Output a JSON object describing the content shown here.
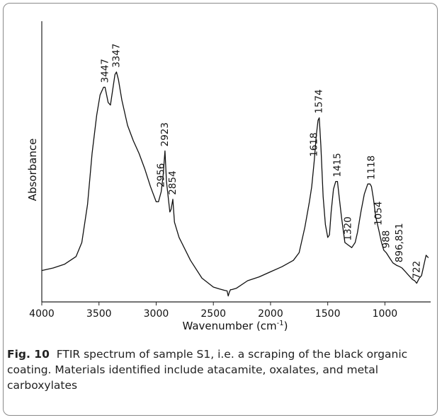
{
  "chart_data": {
    "type": "line",
    "xlabel": "Wavenumber (cm",
    "xlabel_sup": "-1",
    "xlabel_close": ")",
    "ylabel": "Absorbance",
    "xlim": [
      4000,
      600
    ],
    "ylim": [
      0,
      1
    ],
    "x_reversed": true,
    "xticks": [
      4000,
      3500,
      3000,
      2500,
      2000,
      1500,
      1000
    ],
    "xtick_labels": [
      "4000",
      "3500",
      "3000",
      "2500",
      "2000",
      "1500",
      "1000"
    ],
    "grid": false,
    "series": [
      {
        "x": [
          4000,
          3900,
          3800,
          3700,
          3650,
          3600,
          3560,
          3520,
          3490,
          3460,
          3447,
          3420,
          3400,
          3380,
          3360,
          3347,
          3330,
          3300,
          3250,
          3200,
          3150,
          3100,
          3050,
          3000,
          2980,
          2956,
          2940,
          2923,
          2910,
          2880,
          2870,
          2854,
          2840,
          2800,
          2700,
          2600,
          2500,
          2450,
          2400,
          2380,
          2370,
          2360,
          2350,
          2340,
          2300,
          2200,
          2100,
          2000,
          1900,
          1800,
          1750,
          1700,
          1660,
          1640,
          1618,
          1600,
          1585,
          1574,
          1560,
          1540,
          1520,
          1500,
          1485,
          1470,
          1450,
          1430,
          1415,
          1400,
          1380,
          1350,
          1320,
          1290,
          1260,
          1240,
          1210,
          1180,
          1150,
          1130,
          1118,
          1100,
          1080,
          1054,
          1030,
          1010,
          988,
          960,
          930,
          896,
          870,
          851,
          820,
          790,
          760,
          740,
          722,
          700,
          680,
          660,
          640,
          620
        ],
        "y": [
          0.09,
          0.1,
          0.115,
          0.145,
          0.2,
          0.35,
          0.55,
          0.7,
          0.78,
          0.81,
          0.81,
          0.75,
          0.74,
          0.8,
          0.86,
          0.87,
          0.84,
          0.76,
          0.66,
          0.6,
          0.55,
          0.49,
          0.42,
          0.36,
          0.36,
          0.4,
          0.46,
          0.56,
          0.44,
          0.32,
          0.33,
          0.37,
          0.28,
          0.22,
          0.13,
          0.06,
          0.025,
          0.018,
          0.012,
          0.01,
          -0.01,
          0.005,
          0.015,
          0.015,
          0.02,
          0.05,
          0.065,
          0.085,
          0.105,
          0.13,
          0.16,
          0.26,
          0.36,
          0.42,
          0.52,
          0.62,
          0.68,
          0.69,
          0.58,
          0.38,
          0.27,
          0.22,
          0.23,
          0.32,
          0.41,
          0.44,
          0.44,
          0.38,
          0.3,
          0.2,
          0.19,
          0.18,
          0.2,
          0.24,
          0.32,
          0.39,
          0.43,
          0.43,
          0.42,
          0.37,
          0.3,
          0.25,
          0.2,
          0.17,
          0.16,
          0.14,
          0.12,
          0.11,
          0.105,
          0.1,
          0.085,
          0.07,
          0.055,
          0.05,
          0.04,
          0.06,
          0.07,
          0.11,
          0.15,
          0.14
        ]
      }
    ],
    "annotations": [
      {
        "label": "3447",
        "x": 3447,
        "y": 0.81
      },
      {
        "label": "3347",
        "x": 3347,
        "y": 0.87
      },
      {
        "label": "2956",
        "x": 2956,
        "y": 0.4
      },
      {
        "label": "2923",
        "x": 2923,
        "y": 0.56
      },
      {
        "label": "2854",
        "x": 2854,
        "y": 0.37
      },
      {
        "label": "1618",
        "x": 1618,
        "y": 0.52
      },
      {
        "label": "1574",
        "x": 1574,
        "y": 0.69
      },
      {
        "label": "1415",
        "x": 1415,
        "y": 0.44
      },
      {
        "label": "1320",
        "x": 1320,
        "y": 0.19
      },
      {
        "label": "1118",
        "x": 1118,
        "y": 0.43
      },
      {
        "label": "1054",
        "x": 1054,
        "y": 0.25
      },
      {
        "label": "988",
        "x": 988,
        "y": 0.16
      },
      {
        "label": "896,851",
        "x": 874,
        "y": 0.105
      },
      {
        "label": "722",
        "x": 722,
        "y": 0.04
      }
    ]
  },
  "caption": {
    "label": "Fig. 10",
    "text": "FTIR spectrum of sample S1, i.e. a scraping of the black organic coating. Materials identified include atacamite, oxalates, and metal carboxylates"
  },
  "colors": {
    "line": "#111111",
    "axis": "#222222",
    "frame": "#8a8a8a"
  }
}
